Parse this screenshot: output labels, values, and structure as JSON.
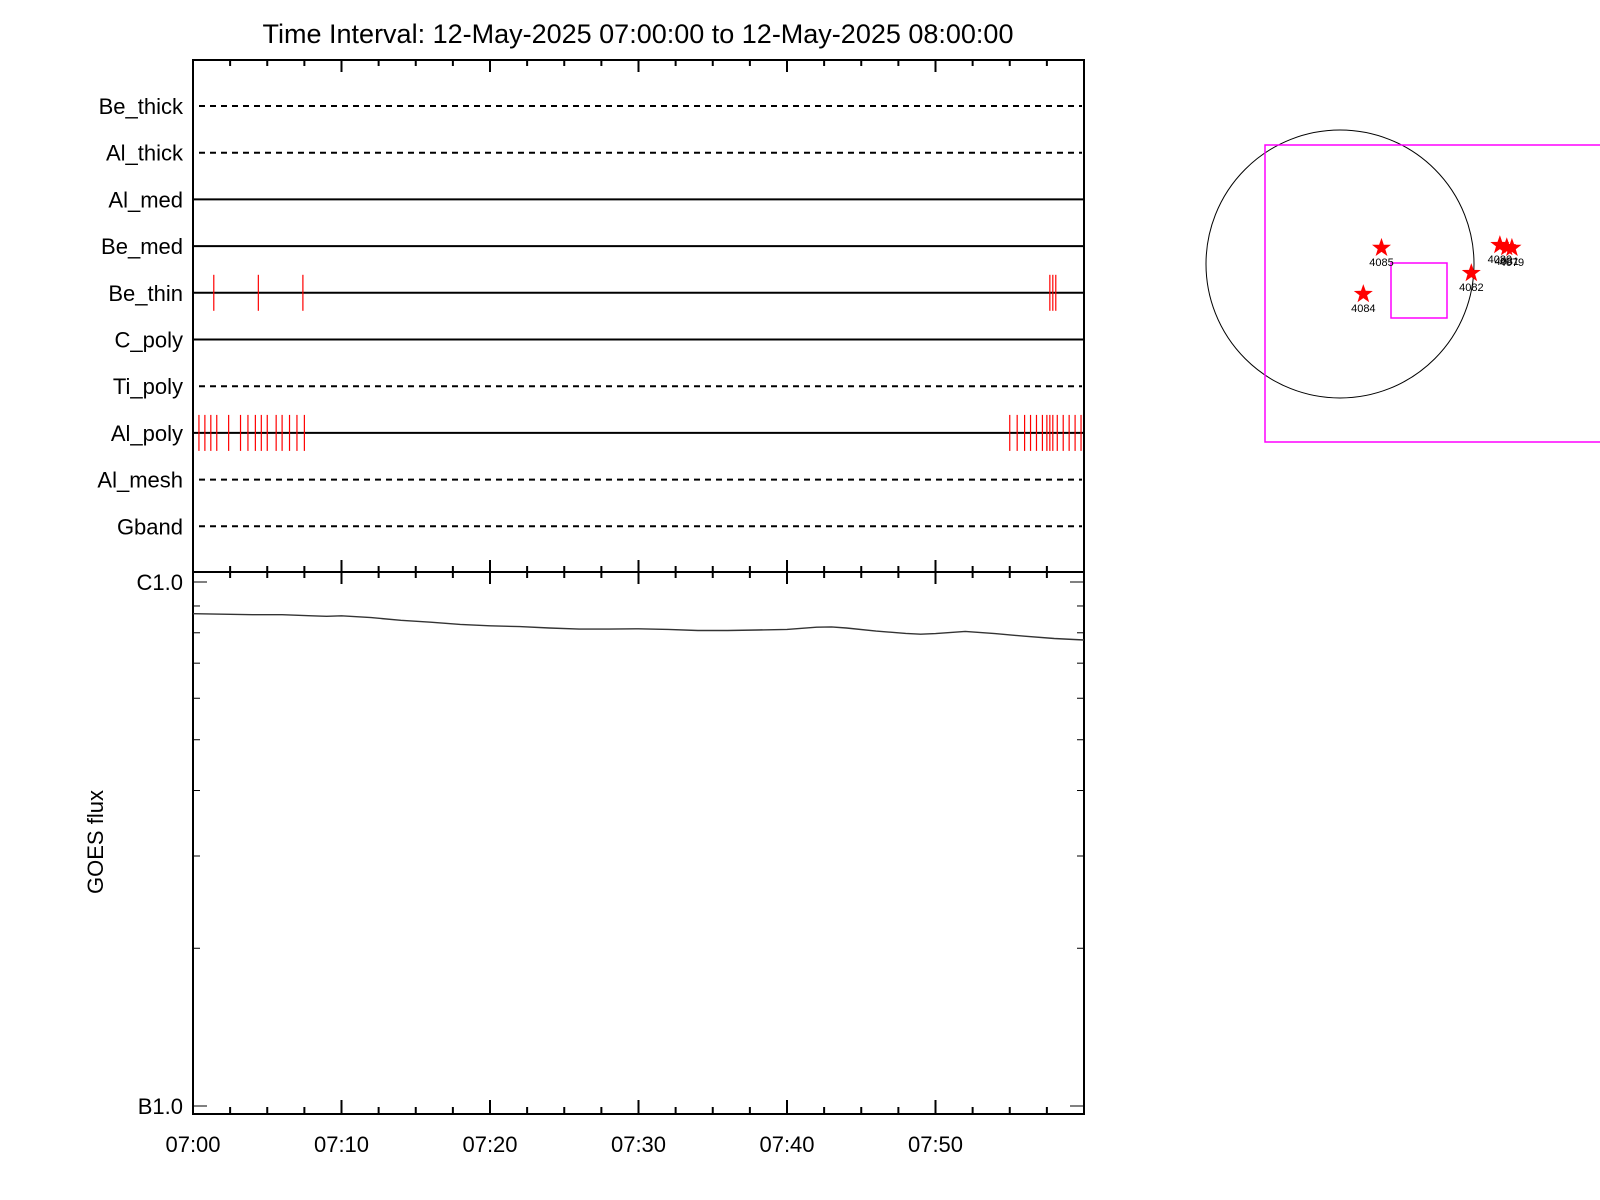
{
  "title": "Time Interval: 12-May-2025 07:00:00 to 12-May-2025 08:00:00",
  "colors": {
    "axes": "#000000",
    "events": "#ff0000",
    "fov_box": "#ff00ff",
    "goes_curve": "#333333",
    "disk": "#000000"
  },
  "chart_data": [
    {
      "type": "timeline",
      "x_range_minutes": [
        0,
        60
      ],
      "filters": [
        {
          "name": "Be_thick",
          "style": "dashed",
          "events_min": []
        },
        {
          "name": "Al_thick",
          "style": "dashed",
          "events_min": []
        },
        {
          "name": "Al_med",
          "style": "solid",
          "events_min": []
        },
        {
          "name": "Be_med",
          "style": "solid",
          "events_min": []
        },
        {
          "name": "Be_thin",
          "style": "solid",
          "events_min": [
            1.4,
            4.4,
            7.4,
            57.7,
            57.9,
            58.1
          ]
        },
        {
          "name": "C_poly",
          "style": "solid",
          "events_min": []
        },
        {
          "name": "Ti_poly",
          "style": "dashed",
          "events_min": []
        },
        {
          "name": "Al_poly",
          "style": "solid",
          "events_min": [
            0.4,
            0.8,
            1.2,
            1.6,
            2.4,
            3.2,
            3.7,
            4.2,
            4.6,
            5.0,
            5.6,
            6.0,
            6.5,
            7.0,
            7.5,
            55.0,
            55.5,
            56.0,
            56.4,
            56.8,
            57.2,
            57.5,
            57.7,
            57.9,
            58.2,
            58.6,
            59.0,
            59.4,
            59.8
          ]
        },
        {
          "name": "Al_mesh",
          "style": "dashed",
          "events_min": []
        },
        {
          "name": "Gband",
          "style": "dashed",
          "events_min": []
        }
      ]
    },
    {
      "type": "line",
      "ylabel": "GOES flux",
      "y_scale": "log",
      "ylim": [
        1e-07,
        1e-06
      ],
      "y_tick_labels": [
        {
          "value": 1e-06,
          "label": "C1.0"
        },
        {
          "value": 1e-07,
          "label": "B1.0"
        }
      ],
      "x_tick_labels": [
        "07:00",
        "07:10",
        "07:20",
        "07:30",
        "07:40",
        "07:50"
      ],
      "x_tick_minutes": [
        0,
        10,
        20,
        30,
        40,
        50
      ],
      "series": [
        {
          "x": [
            0,
            2,
            4,
            6,
            8,
            9,
            10,
            12,
            14,
            16,
            18,
            20,
            22,
            24,
            26,
            28,
            30,
            32,
            34,
            36,
            38,
            40,
            42,
            43,
            44,
            46,
            48,
            49,
            50,
            52,
            54,
            56,
            58,
            60
          ],
          "values": [
            8.7e-07,
            8.68e-07,
            8.66e-07,
            8.66e-07,
            8.62e-07,
            8.6e-07,
            8.62e-07,
            8.55e-07,
            8.45e-07,
            8.38e-07,
            8.3e-07,
            8.25e-07,
            8.22e-07,
            8.17e-07,
            8.13e-07,
            8.13e-07,
            8.14e-07,
            8.12e-07,
            8.08e-07,
            8.08e-07,
            8.1e-07,
            8.12e-07,
            8.2e-07,
            8.21e-07,
            8.17e-07,
            8.06e-07,
            7.98e-07,
            7.95e-07,
            7.97e-07,
            8.05e-07,
            7.97e-07,
            7.88e-07,
            7.8e-07,
            7.75e-07
          ]
        }
      ]
    },
    {
      "type": "scatter",
      "points": [
        {
          "label": "4085",
          "x": 24.0,
          "y": 11.5
        },
        {
          "label": "4082",
          "x": 76.0,
          "y": -6.5
        },
        {
          "label": "4084",
          "x": 13.5,
          "y": -21.5
        },
        {
          "label": "4080",
          "x": 92.5,
          "y": 13.5
        },
        {
          "label": "4081",
          "x": 96.5,
          "y": 12.0
        },
        {
          "label": "4079",
          "x": 99.5,
          "y": 11.5
        }
      ],
      "xlim": [
        -40,
        105
      ],
      "ylim": [
        -80,
        80
      ]
    }
  ]
}
